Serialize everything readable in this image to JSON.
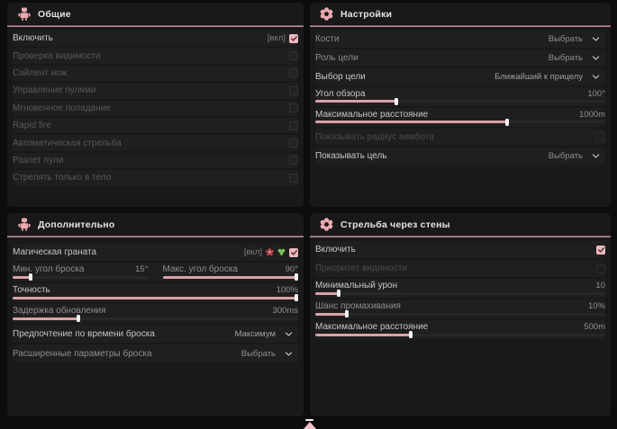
{
  "colors": {
    "background": "#0d0d0d",
    "panel": "#191919",
    "accent_pink": "#d9a2a9",
    "checkbox_pink": "#eeb7bd",
    "header_line": "#d5b9bc",
    "title_text": "#e3e3e3"
  },
  "panels": {
    "general": {
      "title": "Общие",
      "icon": "robot-icon",
      "rows": [
        {
          "type": "toggle",
          "label": "Включить",
          "meta": "[вкл]",
          "checked": true,
          "tone": "bright"
        },
        {
          "type": "toggle",
          "label": "Проверка видимости",
          "checked": false,
          "tone": "dim"
        },
        {
          "type": "toggle",
          "label": "Сайлент нож",
          "checked": false,
          "tone": "dim"
        },
        {
          "type": "toggle",
          "label": "Управление пулями",
          "checked": false,
          "tone": "dim"
        },
        {
          "type": "toggle",
          "label": "Мгновенное попадание",
          "checked": false,
          "tone": "dim"
        },
        {
          "type": "toggle",
          "label": "Rapid fire",
          "checked": false,
          "tone": "dim"
        },
        {
          "type": "toggle",
          "label": "Автоматическая стрельба",
          "checked": false,
          "tone": "dim"
        },
        {
          "type": "toggle",
          "label": "Разлет пули",
          "checked": false,
          "tone": "dim"
        },
        {
          "type": "toggle",
          "label": "Стрелять только в тело",
          "checked": false,
          "tone": "dim"
        }
      ]
    },
    "settings": {
      "title": "Настройки",
      "icon": "flower-icon",
      "rows": [
        {
          "type": "select",
          "label": "Кости",
          "value": "Выбрать",
          "tone": "mid"
        },
        {
          "type": "select",
          "label": "Роль цели",
          "value": "Выбрать",
          "tone": "mid"
        },
        {
          "type": "select",
          "label": "Выбор цели",
          "value": "Ближайший к прицелу",
          "tone": "bright"
        },
        {
          "type": "slider",
          "label": "Угол обзора",
          "value": "100°",
          "pct": 28,
          "tone": "bright"
        },
        {
          "type": "slider",
          "label": "Максимальное расстояние",
          "value": "1000m",
          "pct": 66,
          "tone": "bright"
        },
        {
          "type": "toggle",
          "label": "Показывать радиус аимбота",
          "checked": false,
          "disabled": true,
          "tone": "disabled"
        },
        {
          "type": "select",
          "label": "Показывать цель",
          "value": "Выбрать",
          "tone": "bright"
        }
      ]
    },
    "additional": {
      "title": "Дополнительно",
      "icon": "robot-icon",
      "rows": [
        {
          "type": "toggle",
          "label": "Магическая граната",
          "meta": "[вкл]",
          "icons": [
            "red-flower-icon",
            "green-clover-icon"
          ],
          "checked": true,
          "tone": "bright"
        },
        {
          "type": "dual",
          "cols": [
            {
              "label": "Мин. угол броска",
              "value": "15°",
              "pct": 13
            },
            {
              "label": "Макс. угол броска",
              "value": "90°",
              "pct": 100
            }
          ],
          "tone": "mid"
        },
        {
          "type": "slider",
          "label": "Точность",
          "value": "100%",
          "pct": 100,
          "tone": "bright"
        },
        {
          "type": "slider",
          "label": "Задержка обновления",
          "value": "300ms",
          "pct": 23,
          "tone": "mid"
        },
        {
          "type": "select",
          "label": "Предпочтение по времени броска",
          "value": "Максимум",
          "tone": "bright"
        },
        {
          "type": "select",
          "label": "Расширенные параметры броска",
          "value": "Выбрать",
          "tone": "mid"
        }
      ]
    },
    "wallshoot": {
      "title": "Стрельба через стены",
      "icon": "flower-icon",
      "rows": [
        {
          "type": "toggle",
          "label": "Включить",
          "checked": true,
          "tone": "bright"
        },
        {
          "type": "toggle",
          "label": "Приоритет видимости",
          "checked": false,
          "disabled": true,
          "tone": "disabled"
        },
        {
          "type": "slider",
          "label": "Минимальный урон",
          "value": "10",
          "pct": 8,
          "tone": "bright"
        },
        {
          "type": "slider",
          "label": "Шанс промахивания",
          "value": "10%",
          "pct": 11,
          "tone": "mid"
        },
        {
          "type": "slider",
          "label": "Максимальное расстояние",
          "value": "500m",
          "pct": 33,
          "tone": "bright"
        }
      ]
    }
  },
  "footer": {
    "indicator_icon": "triangle-up-icon"
  }
}
